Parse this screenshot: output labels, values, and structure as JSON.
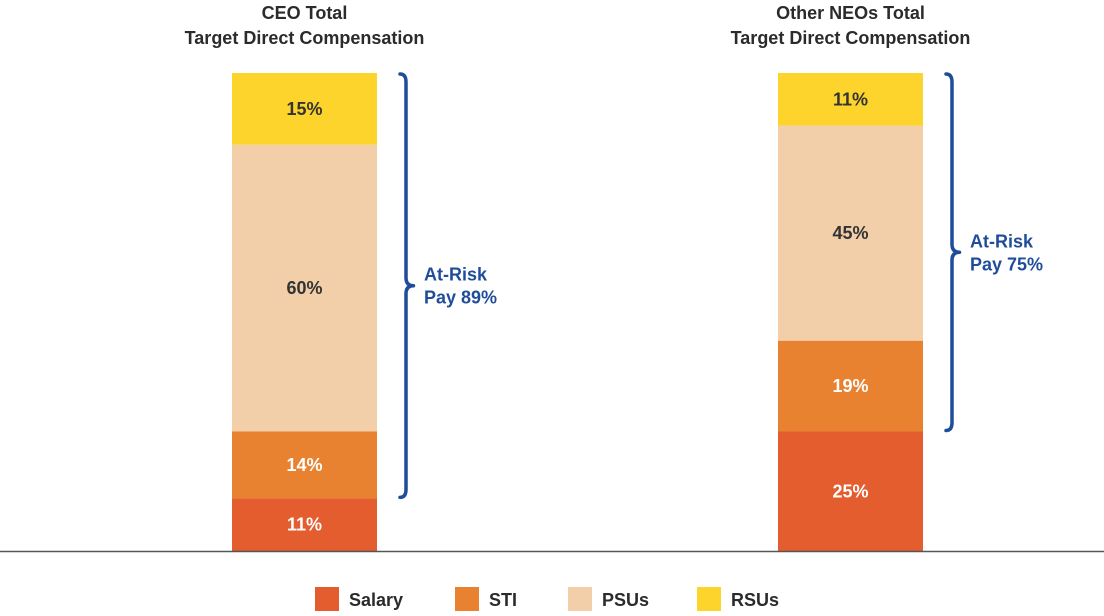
{
  "chart_data": {
    "type": "bar",
    "subtype": "stacked-100",
    "colors": {
      "Salary": "#e35d2e",
      "STI": "#e88230",
      "PSUs": "#f2cfa9",
      "RSUs": "#fdd42b",
      "brace": "#1f4d9a",
      "axis": "#555555",
      "title": "#2b2b2b"
    },
    "legend": [
      "Salary",
      "STI",
      "PSUs",
      "RSUs"
    ],
    "legend_position": "bottom",
    "bars": [
      {
        "title_line1": "CEO Total",
        "title_line2": "Target Direct Compensation",
        "segments": [
          {
            "name": "Salary",
            "value": 11,
            "label": "11%"
          },
          {
            "name": "STI",
            "value": 14,
            "label": "14%"
          },
          {
            "name": "PSUs",
            "value": 60,
            "label": "60%"
          },
          {
            "name": "RSUs",
            "value": 15,
            "label": "15%"
          }
        ],
        "bracket": {
          "from_segment": 1,
          "to_segment": 3,
          "line1": "At-Risk",
          "line2": "Pay 89%"
        }
      },
      {
        "title_line1": "Other NEOs Total",
        "title_line2": "Target Direct Compensation",
        "segments": [
          {
            "name": "Salary",
            "value": 25,
            "label": "25%"
          },
          {
            "name": "STI",
            "value": 19,
            "label": "19%"
          },
          {
            "name": "PSUs",
            "value": 45,
            "label": "45%"
          },
          {
            "name": "RSUs",
            "value": 11,
            "label": "11%"
          }
        ],
        "bracket": {
          "from_segment": 1,
          "to_segment": 3,
          "line1": "At-Risk",
          "line2": "Pay 75%"
        }
      }
    ]
  }
}
